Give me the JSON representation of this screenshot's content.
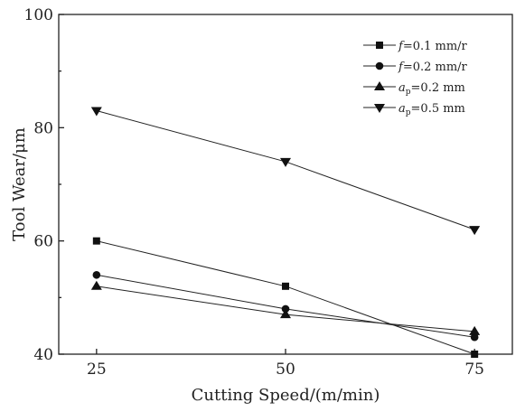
{
  "chart_data": {
    "type": "line",
    "xlabel": "Cutting Speed/(m/min)",
    "ylabel": "Tool Wear/μm",
    "x": [
      25,
      50,
      75
    ],
    "x_tick_labels": [
      "25",
      "50",
      "75"
    ],
    "xlim": [
      20,
      80
    ],
    "ylim": [
      40,
      100
    ],
    "y_ticks": [
      40,
      60,
      80,
      100
    ],
    "y_tick_labels": [
      "40",
      "60",
      "80",
      "100"
    ],
    "grid": false,
    "legend_position": "top-right",
    "series": [
      {
        "name": "f=0.1 mm/r",
        "name_parts": {
          "var": "f",
          "sub": "",
          "rest": "=0.1 mm/r"
        },
        "marker": "square",
        "values": [
          60,
          52,
          40
        ]
      },
      {
        "name": "f=0.2 mm/r",
        "name_parts": {
          "var": "f",
          "sub": "",
          "rest": "=0.2 mm/r"
        },
        "marker": "circle",
        "values": [
          54,
          48,
          43
        ]
      },
      {
        "name": "ap=0.2 mm",
        "name_parts": {
          "var": "a",
          "sub": "p",
          "rest": "=0.2 mm"
        },
        "marker": "triangle-up",
        "values": [
          52,
          47,
          44
        ]
      },
      {
        "name": "ap=0.5 mm",
        "name_parts": {
          "var": "a",
          "sub": "p",
          "rest": "=0.5 mm"
        },
        "marker": "triangle-down",
        "values": [
          83,
          74,
          62
        ]
      }
    ]
  }
}
